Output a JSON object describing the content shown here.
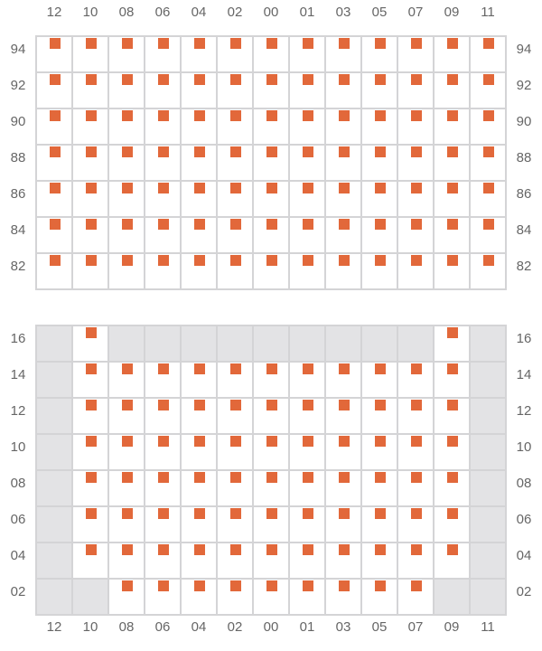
{
  "columns": [
    "12",
    "10",
    "08",
    "06",
    "04",
    "02",
    "00",
    "01",
    "03",
    "05",
    "07",
    "09",
    "11"
  ],
  "seat_color": "#e2683a",
  "blocked_color": "#e3e3e5",
  "sections": [
    {
      "name": "upper",
      "rows": [
        {
          "label": "94",
          "layout": "SSSSSSSSSSSSS"
        },
        {
          "label": "92",
          "layout": "SSSSSSSSSSSSS"
        },
        {
          "label": "90",
          "layout": "SSSSSSSSSSSSS"
        },
        {
          "label": "88",
          "layout": "SSSSSSSSSSSSS"
        },
        {
          "label": "86",
          "layout": "SSSSSSSSSSSSS"
        },
        {
          "label": "84",
          "layout": "SSSSSSSSSSSSS"
        },
        {
          "label": "82",
          "layout": "SSSSSSSSSSSSS"
        }
      ]
    },
    {
      "name": "lower",
      "rows": [
        {
          "label": "16",
          "layout": "XSXXXXXXXXXSX"
        },
        {
          "label": "14",
          "layout": "XSSSSSSSSSSSX"
        },
        {
          "label": "12",
          "layout": "XSSSSSSSSSSSX"
        },
        {
          "label": "10",
          "layout": "XSSSSSSSSSSSX"
        },
        {
          "label": "08",
          "layout": "XSSSSSSSSSSSX"
        },
        {
          "label": "06",
          "layout": "XSSSSSSSSSSSX"
        },
        {
          "label": "04",
          "layout": "XSSSSSSSSSSSX"
        },
        {
          "label": "02",
          "layout": "XXSSSSSSSSSXX"
        }
      ]
    }
  ]
}
